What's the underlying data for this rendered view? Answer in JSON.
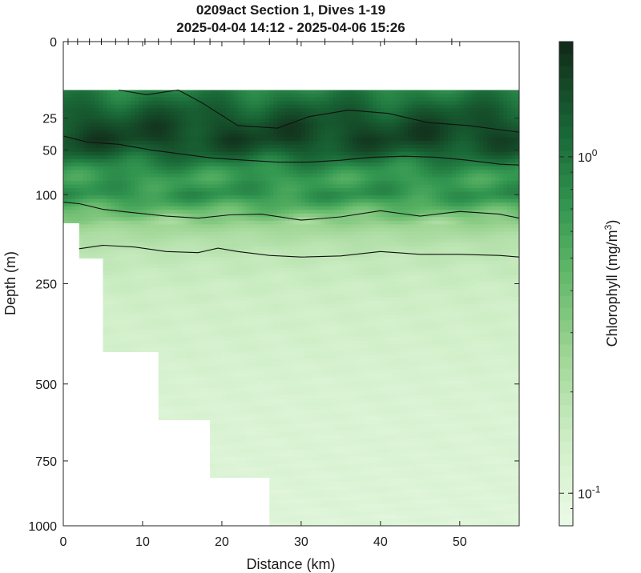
{
  "chart_data": {
    "type": "heatmap",
    "title": "0209act Section 1, Dives 1-19",
    "subtitle": "2025-04-04 14:12 - 2025-04-06 15:26",
    "xlabel": "Distance (km)",
    "ylabel": "Depth (m)",
    "colorbar_label": "Chlorophyll (mg/m",
    "colorbar_label_sup": "3",
    "colorbar_label_end": ")",
    "xlim": [
      0,
      57.5
    ],
    "ylim": [
      0,
      1000
    ],
    "y_scale": "sqrt",
    "x_ticks": [
      0,
      10,
      20,
      30,
      40,
      50
    ],
    "x_tick_labels": [
      "0",
      "10",
      "20",
      "30",
      "40",
      "50"
    ],
    "y_ticks": [
      0,
      25,
      50,
      100,
      250,
      500,
      750,
      1000
    ],
    "y_tick_labels": [
      "0",
      "25",
      "50",
      "100",
      "250",
      "500",
      "750",
      "1000"
    ],
    "colorbar_scale": "log",
    "colorbar_range": [
      0.08,
      2.2
    ],
    "colorbar_ticks": [
      0.1,
      1
    ],
    "colorbar_tick_base": "10",
    "colorbar_tick_exponents": [
      "-1",
      "0"
    ],
    "dive_positions_km": [
      0.6,
      1.8,
      3.3,
      4.8,
      6.6,
      8.2,
      10.3,
      12.0,
      13.6,
      16.5,
      18.5,
      22.8,
      26.0,
      29.5,
      33.0,
      36.5,
      40.5,
      44.5,
      49.0
    ],
    "dive_max_depth_m": [
      140,
      200,
      200,
      410,
      410,
      410,
      410,
      610,
      610,
      610,
      810,
      810,
      1000,
      1000,
      1000,
      1000,
      1000,
      1000,
      1000
    ],
    "data_top_depth_m": 10,
    "profile_x_km": [
      0,
      3,
      7,
      11,
      15,
      19,
      23,
      27,
      31,
      35,
      39,
      43,
      47,
      51,
      55,
      57.5
    ],
    "contours": [
      {
        "level": 1.5,
        "x": [
          7,
          10.5,
          14.5,
          17.5,
          22,
          27,
          31,
          36,
          41,
          46,
          51,
          57.5
        ],
        "depth": [
          10,
          12,
          10,
          16,
          30,
          32,
          24,
          20,
          22,
          28,
          30,
          35
        ]
      },
      {
        "level": 1.0,
        "x": [
          0,
          3,
          7,
          11,
          15,
          19,
          23,
          27,
          31,
          35,
          39,
          43,
          47,
          51,
          55,
          57.5
        ],
        "depth": [
          38,
          43,
          45,
          50,
          54,
          58,
          60,
          62,
          62,
          60,
          57,
          56,
          57,
          60,
          64,
          65
        ]
      },
      {
        "level": 0.5,
        "x": [
          0,
          2,
          5,
          9,
          13,
          17,
          21,
          25,
          30,
          35,
          40,
          45,
          50,
          55,
          57.5
        ],
        "depth": [
          110,
          112,
          120,
          125,
          130,
          133,
          128,
          127,
          136,
          131,
          122,
          130,
          123,
          127,
          133
        ]
      },
      {
        "level": 0.2,
        "x": [
          2,
          5,
          9,
          13,
          17,
          19.5,
          22,
          26,
          30,
          35,
          40,
          45,
          50,
          55,
          57.5
        ],
        "depth": [
          183,
          177,
          180,
          188,
          190,
          182,
          188,
          195,
          198,
          196,
          188,
          193,
          193,
          195,
          198
        ]
      }
    ],
    "depth_levels_m": [
      10,
      20,
      30,
      40,
      50,
      60,
      70,
      80,
      90,
      100,
      110,
      120,
      130,
      140,
      160,
      180,
      200,
      250,
      300,
      400,
      500,
      600,
      800,
      1000
    ],
    "chlorophyll_profile_mg_m3": [
      0.9,
      1.3,
      1.6,
      1.7,
      1.4,
      1.0,
      0.75,
      0.65,
      0.7,
      0.75,
      0.6,
      0.45,
      0.35,
      0.28,
      0.22,
      0.19,
      0.17,
      0.15,
      0.14,
      0.13,
      0.12,
      0.115,
      0.11,
      0.105
    ]
  }
}
